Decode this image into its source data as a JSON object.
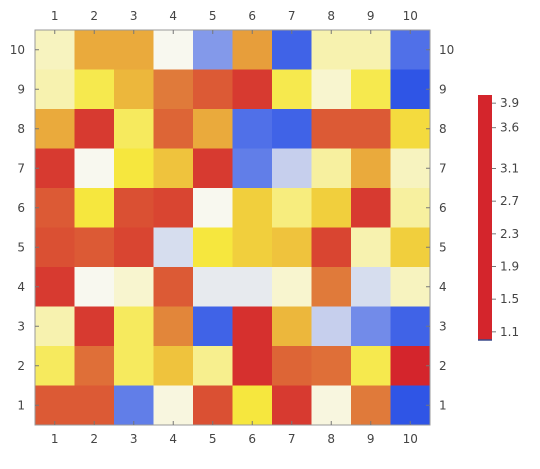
{
  "chart_data": {
    "type": "heatmap",
    "title": "",
    "xlabel": "",
    "ylabel": "",
    "x": [
      1,
      2,
      3,
      4,
      5,
      6,
      7,
      8,
      9,
      10
    ],
    "y": [
      1,
      2,
      3,
      4,
      5,
      6,
      7,
      8,
      9,
      10
    ],
    "x_tick_labels": [
      "1",
      "2",
      "3",
      "4",
      "5",
      "6",
      "7",
      "8",
      "9",
      "10"
    ],
    "y_tick_labels": [
      "1",
      "2",
      "3",
      "4",
      "5",
      "6",
      "7",
      "8",
      "9",
      "10"
    ],
    "grid": false,
    "x_ticks_position": "top-and-bottom",
    "y_ticks_position": "left-and-right",
    "colorscale": {
      "blue": "#2f55e6",
      "white": "#f8f8ef",
      "yellow": "#f6e73e",
      "orange": "#e07a3a",
      "red": "#d4252c"
    },
    "values": [
      [
        2.5,
        3.8,
        3.8,
        2.2,
        1.5,
        3.9,
        1.1,
        2.6,
        2.6,
        1.2
      ],
      [
        2.6,
        3.2,
        3.7,
        4.2,
        4.5,
        4.8,
        3.2,
        2.4,
        3.2,
        1.0
      ],
      [
        3.8,
        4.8,
        3.1,
        4.4,
        3.8,
        1.2,
        1.1,
        4.5,
        4.5,
        3.4
      ],
      [
        4.8,
        2.2,
        3.3,
        3.6,
        4.8,
        1.3,
        1.9,
        2.7,
        3.8,
        2.5
      ],
      [
        4.5,
        3.3,
        4.6,
        4.7,
        2.2,
        3.5,
        2.9,
        3.5,
        4.8,
        2.7
      ],
      [
        4.6,
        4.5,
        4.7,
        2.0,
        3.3,
        3.5,
        3.6,
        4.7,
        2.6,
        3.5
      ],
      [
        4.8,
        2.2,
        2.4,
        4.5,
        2.1,
        2.1,
        2.4,
        4.2,
        2.0,
        2.5
      ],
      [
        2.6,
        4.8,
        3.1,
        4.1,
        1.1,
        4.9,
        3.7,
        1.9,
        1.4,
        1.1
      ],
      [
        3.1,
        4.3,
        3.1,
        3.6,
        2.8,
        4.9,
        4.4,
        4.3,
        3.2,
        5.0
      ],
      [
        4.5,
        4.5,
        1.3,
        2.3,
        4.6,
        3.3,
        4.8,
        2.3,
        4.2,
        1.0
      ]
    ],
    "colorbar": {
      "tick_labels": [
        "1.1",
        "1.5",
        "1.9",
        "2.3",
        "2.7",
        "3.1",
        "3.6",
        "3.9"
      ],
      "tick_values": [
        1.1,
        1.5,
        1.9,
        2.3,
        2.7,
        3.1,
        3.6,
        3.9
      ],
      "range": [
        1.0,
        4.0
      ],
      "color": "#d4252c",
      "placement": "right"
    }
  }
}
